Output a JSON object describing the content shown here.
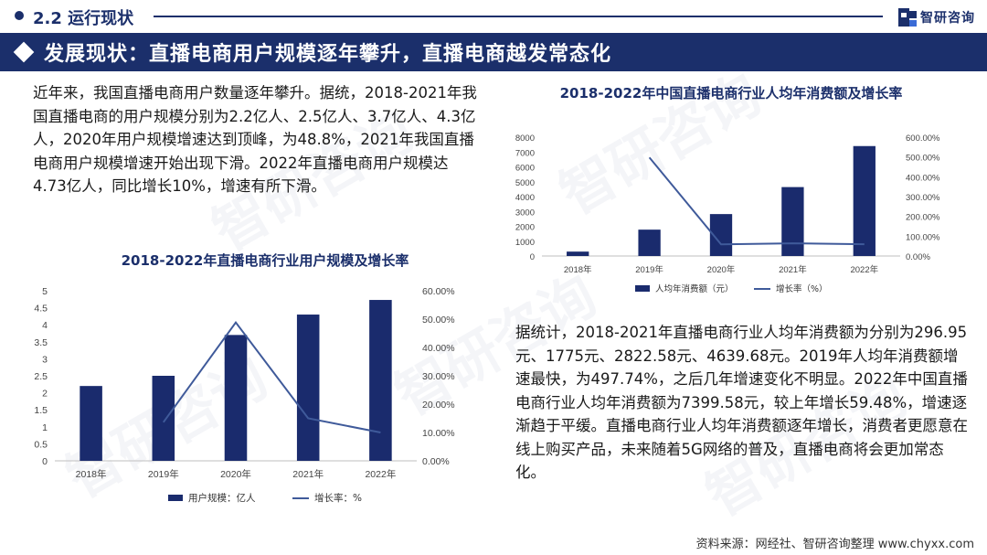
{
  "header": {
    "section": "2.2 运行现状",
    "brand": "智研咨询",
    "headline": "发展现状：直播电商用户规模逐年攀升，直播电商越发常态化"
  },
  "text": {
    "para1": "近年来，我国直播电商用户数量逐年攀升。据统，2018-2021年我国直播电商的用户规模分别为2.2亿人、2.5亿人、3.7亿人、4.3亿人，2020年用户规模增速达到顶峰，为48.8%，2021年我国直播电商用户规模增速开始出现下滑。2022年直播电商用户规模达4.73亿人，同比增长10%，增速有所下滑。",
    "para2": "据统计，2018-2021年直播电商行业人均年消费额为分别为296.95元、1775元、2822.58元、4639.68元。2019年人均年消费额增速最快，为497.74%，之后几年增速变化不明显。2022年中国直播电商行业人均年消费额为7399.58元，较上年增长59.48%，增速逐渐趋于平缓。直播电商行业人均年消费额逐年增长，消费者更愿意在线上购买产品，未来随着5G网络的普及，直播电商将会更加常态化。"
  },
  "footer": {
    "source": "资料来源：网经社、智研咨询整理 www.chyxx.com"
  },
  "colors": {
    "brand": "#1b2f6b",
    "bar": "#1a2b6d",
    "line": "#3f5a9a"
  },
  "chart_data": [
    {
      "type": "bar",
      "title": "2018-2022年直播电商行业用户规模及增长率",
      "categories": [
        "2018年",
        "2019年",
        "2020年",
        "2021年",
        "2022年"
      ],
      "ylim": [
        0,
        5
      ],
      "y_ticks": [
        "0",
        "0.5",
        "1",
        "1.5",
        "2",
        "2.5",
        "3",
        "3.5",
        "4",
        "4.5",
        "5"
      ],
      "y2lim": [
        0,
        60
      ],
      "y2_ticks": [
        "0.00%",
        "10.00%",
        "20.00%",
        "30.00%",
        "40.00%",
        "50.00%",
        "60.00%"
      ],
      "series": [
        {
          "name": "用户规模：亿人",
          "type": "bar",
          "axis": "left",
          "values": [
            2.2,
            2.5,
            3.7,
            4.3,
            4.73
          ]
        },
        {
          "name": "增长率：%",
          "type": "line",
          "axis": "right",
          "values": [
            null,
            13.6,
            48.8,
            15.0,
            10.0
          ]
        }
      ],
      "legend": "bottom",
      "grid": false
    },
    {
      "type": "bar",
      "title": "2018-2022年中国直播电商行业人均年消费额及增长率",
      "categories": [
        "2018年",
        "2019年",
        "2020年",
        "2021年",
        "2022年"
      ],
      "ylim": [
        0,
        8000
      ],
      "y_ticks": [
        "0",
        "1000",
        "2000",
        "3000",
        "4000",
        "5000",
        "6000",
        "7000",
        "8000"
      ],
      "y2lim": [
        0,
        600
      ],
      "y2_ticks": [
        "0.00%",
        "100.00%",
        "200.00%",
        "300.00%",
        "400.00%",
        "500.00%",
        "600.00%"
      ],
      "series": [
        {
          "name": "人均年消费额（元）",
          "type": "bar",
          "axis": "left",
          "values": [
            296.95,
            1775,
            2822.58,
            4639.68,
            7399.58
          ]
        },
        {
          "name": "增长率（%）",
          "type": "line",
          "axis": "right",
          "values": [
            null,
            497.74,
            59.02,
            64.38,
            59.48
          ]
        }
      ],
      "legend": "bottom",
      "grid": false
    }
  ]
}
